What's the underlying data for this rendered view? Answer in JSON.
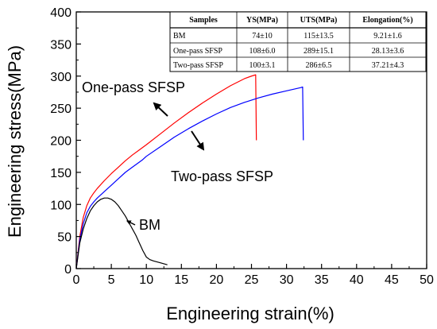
{
  "chart_data": {
    "type": "line",
    "xlabel": "Engineering strain(%)",
    "ylabel": "Engineering stress(MPa)",
    "xlim": [
      0,
      50
    ],
    "ylim": [
      0,
      400
    ],
    "xticks": [
      "0",
      "5",
      "10",
      "15",
      "20",
      "25",
      "30",
      "35",
      "40",
      "45",
      "50"
    ],
    "yticks": [
      "0",
      "50",
      "100",
      "150",
      "200",
      "250",
      "300",
      "350",
      "400"
    ],
    "grid": false,
    "series": [
      {
        "name": "One-pass SFSP",
        "color": "#ff0000",
        "x": [
          0,
          0.5,
          1,
          1.5,
          2,
          2.5,
          3,
          4,
          5,
          6,
          7,
          8,
          9,
          10,
          12,
          14,
          16,
          18,
          20,
          22,
          24,
          25,
          25.6,
          25.7
        ],
        "y": [
          0,
          50,
          80,
          98,
          110,
          118,
          125,
          137,
          148,
          158,
          168,
          177,
          185,
          193,
          210,
          227,
          243,
          258,
          272,
          285,
          296,
          300,
          302,
          200
        ]
      },
      {
        "name": "Two-pass SFSP",
        "color": "#0000ff",
        "x": [
          0,
          0.5,
          1,
          1.5,
          2,
          2.5,
          3,
          4,
          5,
          6,
          7,
          8,
          9,
          9.5,
          10,
          12,
          14,
          16,
          18,
          20,
          22,
          24,
          26,
          28,
          30,
          32,
          32.3,
          32.4
        ],
        "y": [
          0,
          45,
          70,
          87,
          97,
          104,
          110,
          120,
          130,
          140,
          150,
          158,
          166,
          170,
          175,
          190,
          205,
          218,
          230,
          241,
          251,
          259,
          266,
          272,
          277,
          282,
          283,
          200
        ]
      },
      {
        "name": "BM",
        "color": "#000000",
        "x": [
          0,
          0.5,
          1,
          1.5,
          2,
          2.5,
          3,
          3.5,
          4,
          4.5,
          5,
          5.5,
          6,
          6.5,
          7,
          7.5,
          8,
          8.5,
          9,
          9.5,
          10,
          10.5,
          11,
          12,
          13
        ],
        "y": [
          0,
          40,
          62,
          78,
          90,
          98,
          104,
          108,
          110,
          110,
          108,
          104,
          98,
          90,
          82,
          72,
          62,
          52,
          40,
          28,
          18,
          14,
          12,
          9,
          6
        ]
      }
    ],
    "annotations": [
      {
        "label": "One-pass SFSP"
      },
      {
        "label": "Two-pass SFSP"
      },
      {
        "label": "BM"
      }
    ],
    "table": {
      "headers": [
        "Samples",
        "YS(MPa)",
        "UTS(MPa)",
        "Elongation(%)"
      ],
      "rows": [
        [
          "BM",
          "74±10",
          "115±13.5",
          "9.21±1.6"
        ],
        [
          "One-pass SFSP",
          "108±6.0",
          "289±15.1",
          "28.13±3.6"
        ],
        [
          "Two-pass SFSP",
          "100±3.1",
          "286±6.5",
          "37.21±4.3"
        ]
      ]
    }
  }
}
